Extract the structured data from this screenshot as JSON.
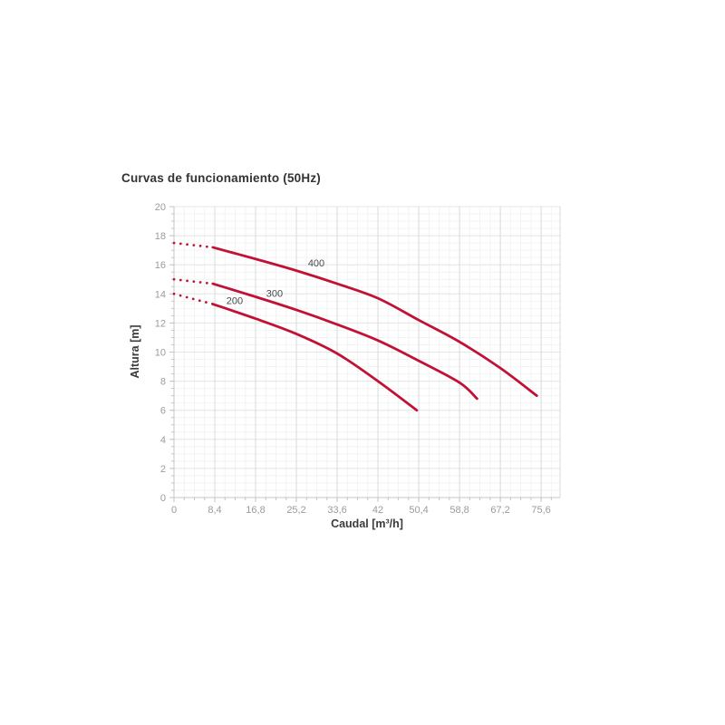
{
  "window": {
    "background": "#ffffff"
  },
  "chart_data": {
    "type": "line",
    "title": "Curvas de funcionamiento (50Hz)",
    "xlabel": "Caudal [m³/h]",
    "ylabel": "Altura [m]",
    "xlim": [
      0,
      79.5
    ],
    "ylim": [
      0,
      20
    ],
    "grid": true,
    "legend_position": "inline-curve-labels",
    "x_ticks": [
      {
        "value": 0,
        "label": "0"
      },
      {
        "value": 8.4,
        "label": "8,4"
      },
      {
        "value": 16.8,
        "label": "16,8"
      },
      {
        "value": 25.2,
        "label": "25,2"
      },
      {
        "value": 33.6,
        "label": "33,6"
      },
      {
        "value": 42,
        "label": "42"
      },
      {
        "value": 50.4,
        "label": "50,4"
      },
      {
        "value": 58.8,
        "label": "58,8"
      },
      {
        "value": 67.2,
        "label": "67,2"
      },
      {
        "value": 75.6,
        "label": "75,6"
      }
    ],
    "y_ticks": [
      {
        "value": 0,
        "label": "0"
      },
      {
        "value": 2,
        "label": "2"
      },
      {
        "value": 4,
        "label": "4"
      },
      {
        "value": 6,
        "label": "6"
      },
      {
        "value": 8,
        "label": "8"
      },
      {
        "value": 10,
        "label": "10"
      },
      {
        "value": 12,
        "label": "12"
      },
      {
        "value": 14,
        "label": "14"
      },
      {
        "value": 16,
        "label": "16"
      },
      {
        "value": 18,
        "label": "18"
      },
      {
        "value": 20,
        "label": "20"
      }
    ],
    "x_minor_step": 2.1,
    "y_minor_step": 0.5,
    "series": [
      {
        "name": "200",
        "dashed_lead_in": [
          [
            0,
            14.0
          ],
          [
            8,
            13.3
          ]
        ],
        "points": [
          [
            8,
            13.3
          ],
          [
            16.8,
            12.3
          ],
          [
            25.2,
            11.25
          ],
          [
            33.6,
            9.9
          ],
          [
            42,
            8.0
          ],
          [
            50,
            6.0
          ]
        ],
        "label_pos": [
          12.5,
          13.3
        ]
      },
      {
        "name": "300",
        "dashed_lead_in": [
          [
            0,
            15.0
          ],
          [
            8,
            14.7
          ]
        ],
        "points": [
          [
            8,
            14.7
          ],
          [
            16.8,
            13.8
          ],
          [
            25.2,
            12.9
          ],
          [
            33.6,
            11.9
          ],
          [
            42,
            10.8
          ],
          [
            50.4,
            9.4
          ],
          [
            58.8,
            7.9
          ],
          [
            62.4,
            6.8
          ]
        ],
        "label_pos": [
          20.7,
          13.8
        ]
      },
      {
        "name": "400",
        "dashed_lead_in": [
          [
            0,
            17.5
          ],
          [
            8,
            17.2
          ]
        ],
        "points": [
          [
            8,
            17.2
          ],
          [
            16.8,
            16.4
          ],
          [
            25.2,
            15.6
          ],
          [
            33.6,
            14.7
          ],
          [
            42,
            13.7
          ],
          [
            50.4,
            12.2
          ],
          [
            58.8,
            10.7
          ],
          [
            67.2,
            8.9
          ],
          [
            74.7,
            7.0
          ]
        ],
        "label_pos": [
          29.3,
          15.9
        ]
      }
    ],
    "colors": {
      "curve": "#c11236",
      "curve_label": "#4a4a4a",
      "tick_label": "#9b9b9b",
      "axis_title": "#3b3b3b",
      "title": "#333333",
      "grid_major_v": "#d8dbdb",
      "grid_major_h": "#e4e7e6",
      "grid_minor": "#f1f4f3",
      "axis_line": "#c4c7c7",
      "tick_mark": "#c2c5c5"
    }
  }
}
